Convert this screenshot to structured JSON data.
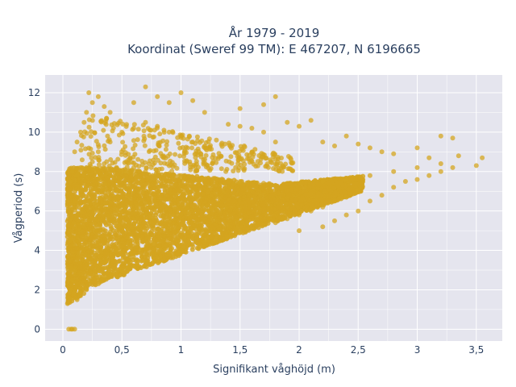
{
  "chart_data": {
    "type": "scatter",
    "title_lines": [
      "År 1979 - 2019",
      "Koordinat (Sweref 99 TM): E 467207, N 6196665"
    ],
    "xlabel": "Signifikant våghöjd (m)",
    "ylabel": "Vågperiod (s)",
    "xlim": [
      -0.15,
      3.72
    ],
    "ylim": [
      -0.6,
      12.9
    ],
    "xticks": [
      0,
      0.5,
      1,
      1.5,
      2,
      2.5,
      3,
      3.5
    ],
    "xtick_labels": [
      "0",
      "0,5",
      "1",
      "1,5",
      "2",
      "2,5",
      "3",
      "3,5"
    ],
    "yticks": [
      0,
      2,
      4,
      6,
      8,
      10,
      12
    ],
    "ytick_labels": [
      "0",
      "2",
      "4",
      "6",
      "8",
      "10",
      "12"
    ],
    "grid": true,
    "background": "#e5e5ee",
    "marker_color": "#d4a520",
    "series": [
      {
        "points": [
          [
            0.05,
            0
          ],
          [
            0.07,
            0
          ],
          [
            0.08,
            0
          ],
          [
            0.1,
            0
          ],
          [
            0.04,
            1.3
          ],
          [
            0.05,
            1.6
          ],
          [
            0.06,
            2.0
          ],
          [
            0.08,
            2.5
          ],
          [
            0.1,
            3.0
          ],
          [
            0.12,
            3.5
          ],
          [
            0.06,
            4.5
          ],
          [
            0.05,
            6.0
          ],
          [
            0.06,
            7.5
          ],
          [
            0.08,
            8.0
          ],
          [
            0.05,
            5.0
          ],
          [
            0.07,
            3.0
          ],
          [
            0.09,
            1.8
          ],
          [
            0.12,
            1.5
          ],
          [
            0.15,
            1.7
          ],
          [
            0.2,
            2.0
          ],
          [
            0.1,
            6.5
          ],
          [
            0.12,
            7.8
          ],
          [
            0.15,
            8.2
          ],
          [
            0.1,
            9.0
          ],
          [
            0.12,
            9.5
          ],
          [
            0.15,
            10.0
          ],
          [
            0.18,
            10.5
          ],
          [
            0.2,
            11.0
          ],
          [
            0.22,
            12.0
          ],
          [
            0.25,
            11.5
          ],
          [
            0.3,
            2.3
          ],
          [
            0.35,
            2.6
          ],
          [
            0.4,
            2.7
          ],
          [
            0.45,
            2.8
          ],
          [
            0.5,
            3.0
          ],
          [
            0.55,
            3.1
          ],
          [
            0.6,
            3.2
          ],
          [
            0.7,
            3.4
          ],
          [
            0.8,
            3.6
          ],
          [
            0.9,
            3.8
          ],
          [
            1.0,
            4.0
          ],
          [
            1.1,
            4.2
          ],
          [
            1.2,
            4.4
          ],
          [
            1.3,
            4.5
          ],
          [
            1.4,
            4.7
          ],
          [
            1.5,
            4.9
          ],
          [
            1.6,
            5.1
          ],
          [
            1.7,
            5.3
          ],
          [
            1.8,
            5.4
          ],
          [
            1.9,
            5.6
          ],
          [
            2.0,
            5.8
          ],
          [
            2.1,
            6.0
          ],
          [
            2.2,
            6.2
          ],
          [
            2.3,
            6.5
          ],
          [
            2.4,
            6.7
          ],
          [
            2.5,
            7.0
          ],
          [
            0.3,
            8.0
          ],
          [
            0.4,
            8.1
          ],
          [
            0.5,
            8.0
          ],
          [
            0.6,
            8.2
          ],
          [
            0.7,
            8.0
          ],
          [
            0.8,
            7.8
          ],
          [
            0.9,
            7.9
          ],
          [
            1.0,
            7.8
          ],
          [
            1.1,
            7.7
          ],
          [
            1.2,
            7.6
          ],
          [
            1.3,
            7.6
          ],
          [
            1.4,
            7.5
          ],
          [
            1.5,
            7.4
          ],
          [
            1.6,
            7.4
          ],
          [
            1.7,
            7.4
          ],
          [
            1.8,
            7.3
          ],
          [
            1.9,
            7.4
          ],
          [
            2.0,
            7.4
          ],
          [
            2.2,
            7.5
          ],
          [
            2.4,
            7.6
          ],
          [
            2.6,
            7.8
          ],
          [
            2.8,
            8.0
          ],
          [
            3.0,
            8.2
          ],
          [
            3.2,
            8.4
          ],
          [
            0.3,
            9.0
          ],
          [
            0.4,
            9.5
          ],
          [
            0.5,
            10.0
          ],
          [
            0.6,
            10.2
          ],
          [
            0.7,
            10.5
          ],
          [
            0.8,
            10.3
          ],
          [
            0.9,
            10.0
          ],
          [
            1.0,
            9.8
          ],
          [
            1.1,
            9.5
          ],
          [
            1.2,
            9.3
          ],
          [
            1.3,
            9.6
          ],
          [
            1.4,
            10.4
          ],
          [
            1.5,
            10.3
          ],
          [
            1.6,
            10.2
          ],
          [
            1.7,
            10.0
          ],
          [
            1.8,
            9.5
          ],
          [
            0.3,
            11.8
          ],
          [
            0.35,
            11.3
          ],
          [
            0.4,
            11.0
          ],
          [
            0.6,
            11.5
          ],
          [
            0.7,
            12.3
          ],
          [
            0.8,
            11.8
          ],
          [
            0.9,
            11.5
          ],
          [
            1.0,
            12.0
          ],
          [
            1.1,
            11.6
          ],
          [
            1.2,
            11.0
          ],
          [
            1.5,
            11.2
          ],
          [
            1.7,
            11.4
          ],
          [
            1.8,
            11.8
          ],
          [
            1.9,
            10.5
          ],
          [
            2.0,
            10.3
          ],
          [
            2.1,
            10.6
          ],
          [
            2.2,
            9.5
          ],
          [
            2.3,
            9.3
          ],
          [
            2.4,
            9.8
          ],
          [
            2.5,
            9.4
          ],
          [
            2.6,
            9.2
          ],
          [
            2.7,
            9.0
          ],
          [
            2.8,
            8.9
          ],
          [
            3.0,
            9.2
          ],
          [
            3.1,
            8.7
          ],
          [
            3.2,
            9.8
          ],
          [
            3.3,
            9.7
          ],
          [
            3.35,
            8.8
          ],
          [
            3.5,
            8.3
          ],
          [
            3.55,
            8.7
          ],
          [
            2.0,
            5.0
          ],
          [
            2.2,
            5.2
          ],
          [
            2.3,
            5.5
          ],
          [
            2.4,
            5.8
          ],
          [
            2.5,
            6.0
          ],
          [
            2.6,
            6.5
          ],
          [
            2.7,
            6.8
          ],
          [
            2.8,
            7.2
          ],
          [
            2.9,
            7.5
          ],
          [
            3.0,
            7.6
          ],
          [
            3.1,
            7.8
          ],
          [
            3.2,
            8.0
          ],
          [
            3.3,
            8.2
          ]
        ]
      }
    ]
  }
}
